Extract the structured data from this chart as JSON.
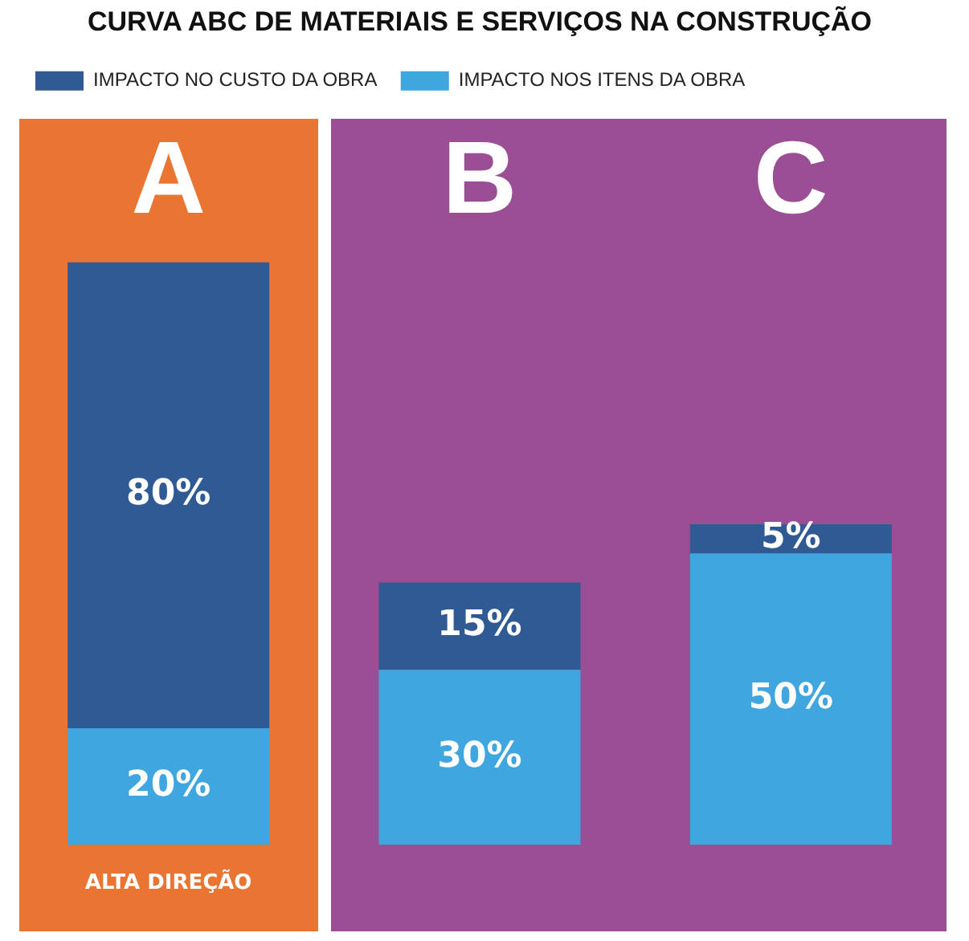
{
  "chart_data": {
    "type": "bar",
    "title": "CURVA ABC DE MATERIAIS E SERVIÇOS NA CONSTRUÇÃO",
    "categories": [
      "A",
      "B",
      "C"
    ],
    "stacked": true,
    "legend": "top",
    "series": [
      {
        "name": "IMPACTO NOS ITENS DA OBRA",
        "color": "#3fa6e0",
        "values": [
          20,
          30,
          50
        ],
        "value_labels": [
          "20%",
          "30%",
          "50%"
        ]
      },
      {
        "name": "IMPACTO NO CUSTO DA OBRA",
        "color": "#2f5a94",
        "values": [
          80,
          15,
          5
        ],
        "value_labels": [
          "80%",
          "15%",
          "5%"
        ]
      }
    ],
    "annotations": [
      "ALTA DIREÇÃO"
    ]
  }
}
